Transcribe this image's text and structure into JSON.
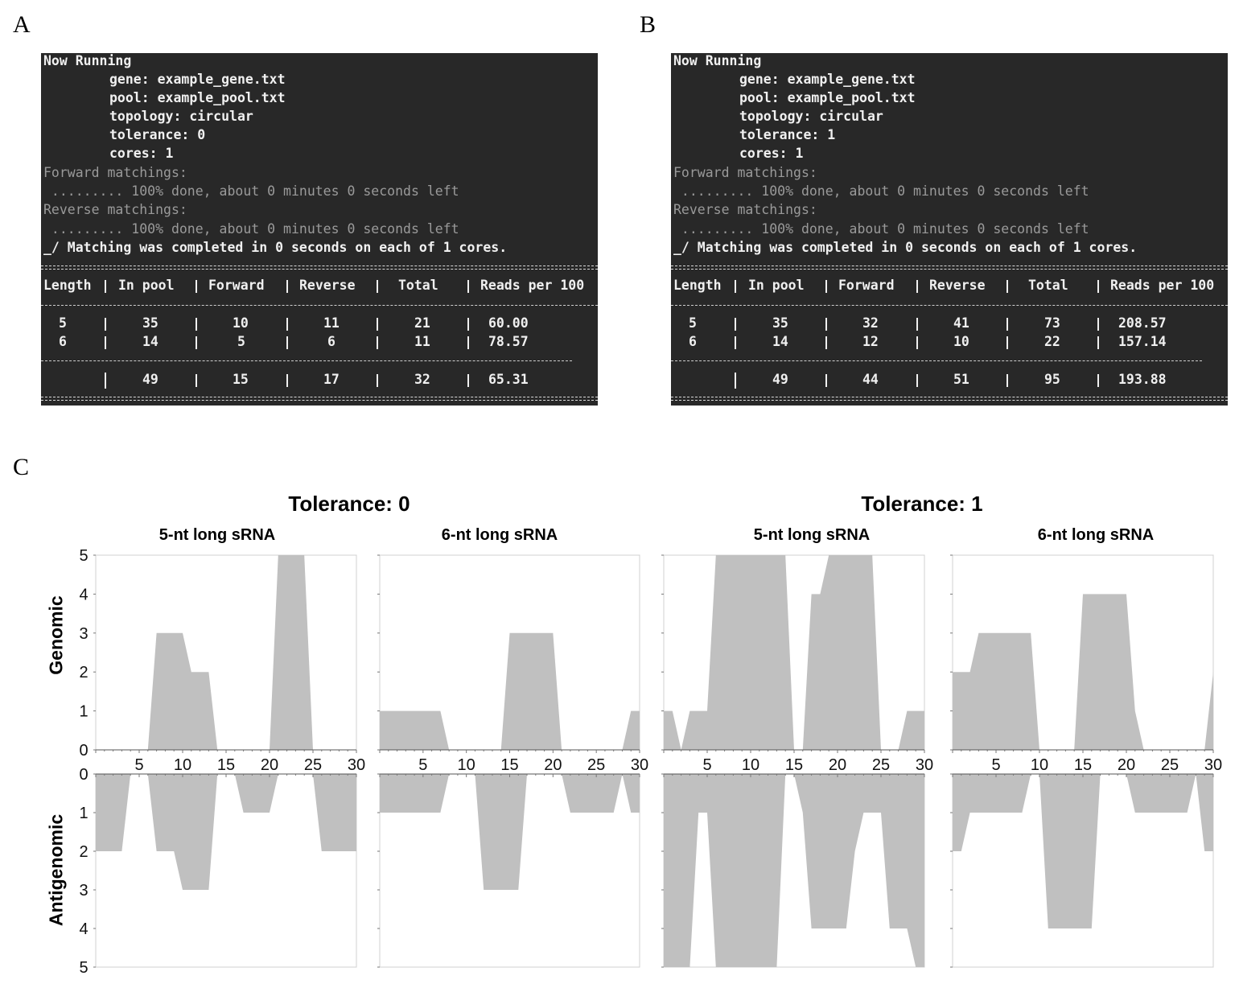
{
  "panels": {
    "a": "A",
    "b": "B",
    "c": "C"
  },
  "terminals": [
    {
      "header": "Now Running",
      "params": [
        "gene: example_gene.txt",
        "pool: example_pool.txt",
        "topology: circular",
        "tolerance: 0",
        "cores: 1"
      ],
      "fwd_label": "Forward matchings:",
      "fwd_progress": " ......... 100% done, about 0 minutes 0 seconds left",
      "rev_label": "Reverse matchings:",
      "rev_progress": " ......... 100% done, about 0 minutes 0 seconds left",
      "completed": "_/ Matching was completed in 0 seconds on each of 1 cores.",
      "columns": [
        "Length",
        "In pool",
        "Forward",
        "Reverse",
        "Total",
        "Reads per 100"
      ],
      "rows": [
        [
          "5",
          "35",
          "10",
          "11",
          "21",
          "60.00"
        ],
        [
          "6",
          "14",
          "5",
          "6",
          "11",
          "78.57"
        ]
      ],
      "totals": [
        "",
        "49",
        "15",
        "17",
        "32",
        "65.31"
      ]
    },
    {
      "header": "Now Running",
      "params": [
        "gene: example_gene.txt",
        "pool: example_pool.txt",
        "topology: circular",
        "tolerance: 1",
        "cores: 1"
      ],
      "fwd_label": "Forward matchings:",
      "fwd_progress": " ......... 100% done, about 0 minutes 0 seconds left",
      "rev_label": "Reverse matchings:",
      "rev_progress": " ......... 100% done, about 0 minutes 0 seconds left",
      "completed": "_/ Matching was completed in 0 seconds on each of 1 cores.",
      "columns": [
        "Length",
        "In pool",
        "Forward",
        "Reverse",
        "Total",
        "Reads per 100"
      ],
      "rows": [
        [
          "5",
          "35",
          "32",
          "41",
          "73",
          "208.57"
        ],
        [
          "6",
          "14",
          "12",
          "10",
          "22",
          "157.14"
        ]
      ],
      "totals": [
        "",
        "49",
        "44",
        "51",
        "95",
        "193.88"
      ]
    }
  ],
  "tolerance_titles": [
    "Tolerance: 0",
    "Tolerance: 1"
  ],
  "subplot_titles": [
    "5-nt long sRNA",
    "6-nt long sRNA",
    "5-nt long sRNA",
    "6-nt long sRNA"
  ],
  "row_labels": {
    "top": "Genomic",
    "bottom": "Antigenomic"
  },
  "chart_data": [
    {
      "type": "area",
      "title": "Tolerance: 0 / 5-nt long sRNA",
      "xlim": [
        0,
        30
      ],
      "ylim": [
        0,
        5
      ],
      "xticks": [
        5,
        10,
        15,
        20,
        25,
        30
      ],
      "yticks": [
        0,
        1,
        2,
        3,
        4,
        5
      ],
      "x": [
        0,
        1,
        2,
        3,
        4,
        5,
        6,
        7,
        8,
        9,
        10,
        11,
        12,
        13,
        14,
        15,
        16,
        17,
        18,
        19,
        20,
        21,
        22,
        23,
        24,
        25,
        26,
        27,
        28,
        29,
        30
      ],
      "genomic": [
        0,
        0,
        0,
        0,
        0,
        0,
        0,
        3,
        3,
        3,
        3,
        2,
        2,
        2,
        0,
        0,
        0,
        0,
        0,
        0,
        0,
        5,
        5,
        5,
        5,
        0,
        0,
        0,
        0,
        0,
        0
      ],
      "antigenomic": [
        2,
        2,
        2,
        2,
        0,
        0,
        0,
        2,
        2,
        2,
        3,
        3,
        3,
        3,
        0,
        0,
        0,
        1,
        1,
        1,
        1,
        0,
        0,
        0,
        0,
        0,
        2,
        2,
        2,
        2,
        2
      ]
    },
    {
      "type": "area",
      "title": "Tolerance: 0 / 6-nt long sRNA",
      "xlim": [
        0,
        30
      ],
      "ylim": [
        0,
        5
      ],
      "xticks": [
        5,
        10,
        15,
        20,
        25,
        30
      ],
      "yticks": [
        0,
        1,
        2,
        3,
        4,
        5
      ],
      "x": [
        0,
        1,
        2,
        3,
        4,
        5,
        6,
        7,
        8,
        9,
        10,
        11,
        12,
        13,
        14,
        15,
        16,
        17,
        18,
        19,
        20,
        21,
        22,
        23,
        24,
        25,
        26,
        27,
        28,
        29,
        30
      ],
      "genomic": [
        1,
        1,
        1,
        1,
        1,
        1,
        1,
        1,
        0,
        0,
        0,
        0,
        0,
        0,
        0,
        3,
        3,
        3,
        3,
        3,
        3,
        0,
        0,
        0,
        0,
        0,
        0,
        0,
        0,
        1,
        1
      ],
      "antigenomic": [
        1,
        1,
        1,
        1,
        1,
        1,
        1,
        1,
        0,
        0,
        0,
        0,
        3,
        3,
        3,
        3,
        3,
        0,
        0,
        0,
        0,
        0,
        1,
        1,
        1,
        1,
        1,
        1,
        0,
        1,
        1
      ]
    },
    {
      "type": "area",
      "title": "Tolerance: 1 / 5-nt long sRNA",
      "xlim": [
        0,
        30
      ],
      "ylim": [
        0,
        5
      ],
      "xticks": [
        5,
        10,
        15,
        20,
        25,
        30
      ],
      "yticks": [
        0,
        1,
        2,
        3,
        4,
        5
      ],
      "x": [
        0,
        1,
        2,
        3,
        4,
        5,
        6,
        7,
        8,
        9,
        10,
        11,
        12,
        13,
        14,
        15,
        16,
        17,
        18,
        19,
        20,
        21,
        22,
        23,
        24,
        25,
        26,
        27,
        28,
        29,
        30
      ],
      "genomic": [
        1,
        1,
        0,
        1,
        1,
        1,
        5,
        5,
        5,
        5,
        5,
        5,
        5,
        5,
        5,
        0,
        0,
        4,
        4,
        5,
        5,
        5,
        5,
        5,
        5,
        0,
        0,
        0,
        1,
        1,
        1
      ],
      "antigenomic": [
        5,
        5,
        5,
        5,
        1,
        1,
        5,
        5,
        5,
        5,
        5,
        5,
        5,
        5,
        0,
        0,
        1,
        4,
        4,
        4,
        4,
        4,
        2,
        1,
        1,
        1,
        4,
        4,
        4,
        5,
        5
      ]
    },
    {
      "type": "area",
      "title": "Tolerance: 1 / 6-nt long sRNA",
      "xlim": [
        0,
        30
      ],
      "ylim": [
        0,
        5
      ],
      "xticks": [
        5,
        10,
        15,
        20,
        25,
        30
      ],
      "yticks": [
        0,
        1,
        2,
        3,
        4,
        5
      ],
      "x": [
        0,
        1,
        2,
        3,
        4,
        5,
        6,
        7,
        8,
        9,
        10,
        11,
        12,
        13,
        14,
        15,
        16,
        17,
        18,
        19,
        20,
        21,
        22,
        23,
        24,
        25,
        26,
        27,
        28,
        29,
        30
      ],
      "genomic": [
        2,
        2,
        2,
        3,
        3,
        3,
        3,
        3,
        3,
        3,
        0,
        0,
        0,
        0,
        0,
        4,
        4,
        4,
        4,
        4,
        4,
        1,
        0,
        0,
        0,
        0,
        0,
        0,
        0,
        0,
        2
      ],
      "antigenomic": [
        2,
        2,
        1,
        1,
        1,
        1,
        1,
        1,
        1,
        0,
        0,
        4,
        4,
        4,
        4,
        4,
        4,
        0,
        0,
        0,
        0,
        1,
        1,
        1,
        1,
        1,
        1,
        1,
        0,
        2,
        2
      ]
    }
  ]
}
